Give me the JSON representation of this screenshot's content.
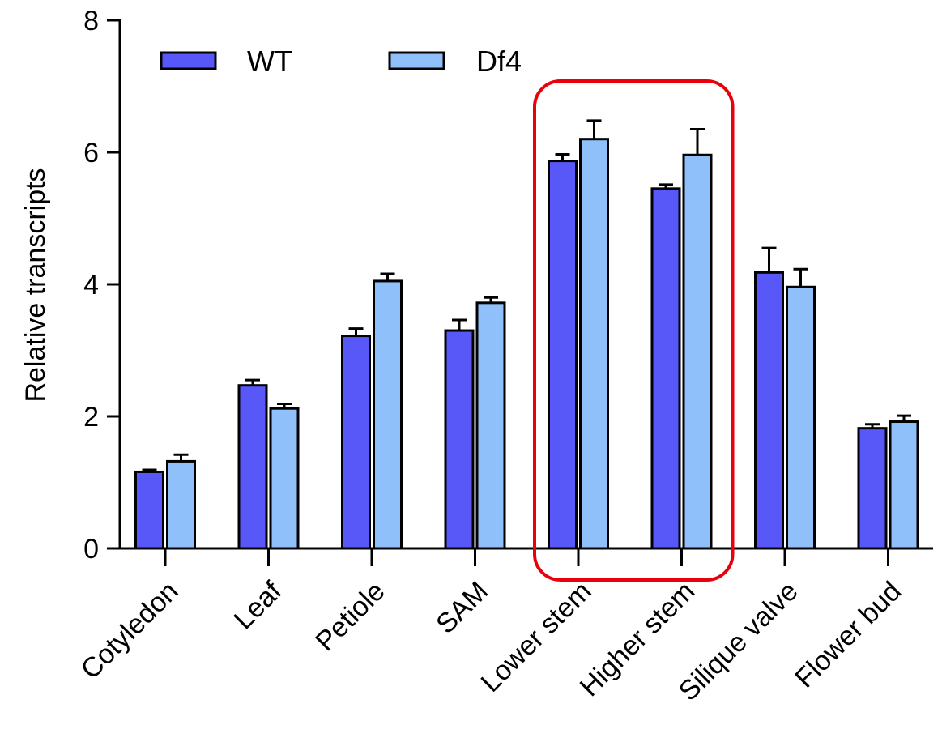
{
  "chart_data": {
    "type": "bar",
    "ylabel": "Relative transcripts",
    "xlabel": "",
    "title": "",
    "ylim": [
      0,
      8
    ],
    "yticks": [
      0,
      2,
      4,
      6,
      8
    ],
    "categories": [
      "Cotyledon",
      "Leaf",
      "Petiole",
      "SAM",
      "Lower stem",
      "Higher stem",
      "Silique valve",
      "Flower bud"
    ],
    "series": [
      {
        "name": "WT",
        "color": "#5858f8",
        "values": [
          1.16,
          2.47,
          3.22,
          3.3,
          5.87,
          5.45,
          4.18,
          1.82
        ],
        "errors": [
          0.03,
          0.08,
          0.11,
          0.16,
          0.1,
          0.06,
          0.37,
          0.06
        ]
      },
      {
        "name": "Df4",
        "color": "#8fc0fa",
        "values": [
          1.32,
          2.12,
          4.05,
          3.72,
          6.2,
          5.96,
          3.96,
          1.92
        ],
        "errors": [
          0.1,
          0.07,
          0.11,
          0.08,
          0.28,
          0.39,
          0.27,
          0.09
        ]
      }
    ],
    "legend_position": "top-left",
    "grid": false,
    "highlight": {
      "categories": [
        "Lower stem",
        "Higher stem"
      ],
      "color": "#e8000b"
    }
  }
}
